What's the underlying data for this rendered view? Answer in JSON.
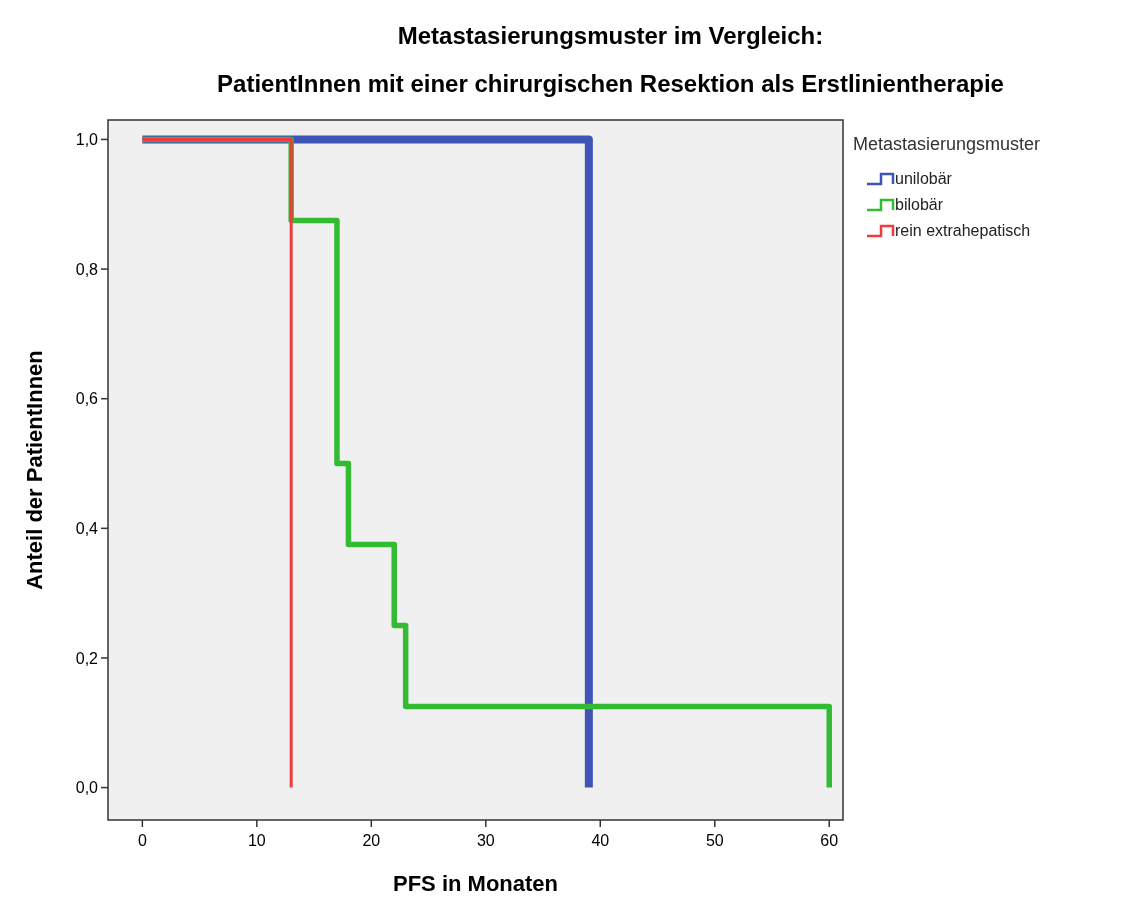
{
  "chart_data": {
    "type": "step",
    "title": "Metastasierungsmuster im Vergleich:",
    "subtitle": "PatientInnen mit einer chirurgischen Resektion als Erstlinientherapie",
    "xlabel": "PFS in Monaten",
    "ylabel": "Anteil der PatientInnen",
    "legend_title": "Metastasierungsmuster",
    "legend": "right",
    "grid": false,
    "marker": "none",
    "line_style": "solid",
    "xlim": [
      -3,
      61.2
    ],
    "xticks": [
      0,
      10,
      20,
      30,
      40,
      50,
      60
    ],
    "ylim": [
      -0.05,
      1.03
    ],
    "yticks": [
      {
        "value": 0,
        "label": "0,0"
      },
      {
        "value": 0.2,
        "label": "0,2"
      },
      {
        "value": 0.4,
        "label": "0,4"
      },
      {
        "value": 0.6,
        "label": "0,6"
      },
      {
        "value": 0.8,
        "label": "0,8"
      },
      {
        "value": 1,
        "label": "1,0"
      }
    ],
    "series": [
      {
        "name": "unilobär",
        "color": "#3f55b5",
        "x": [
          0,
          39
        ],
        "values": [
          1,
          0
        ]
      },
      {
        "name": "bilobär",
        "color": "#33bb33",
        "x": [
          0,
          13,
          17,
          18,
          22,
          23,
          60
        ],
        "values": [
          1,
          0.875,
          0.5,
          0.375,
          0.25,
          0.125,
          0
        ]
      },
      {
        "name": "rein extrahepatisch",
        "color": "#ee3b3b",
        "x": [
          0,
          13
        ],
        "values": [
          1,
          0
        ]
      }
    ]
  }
}
